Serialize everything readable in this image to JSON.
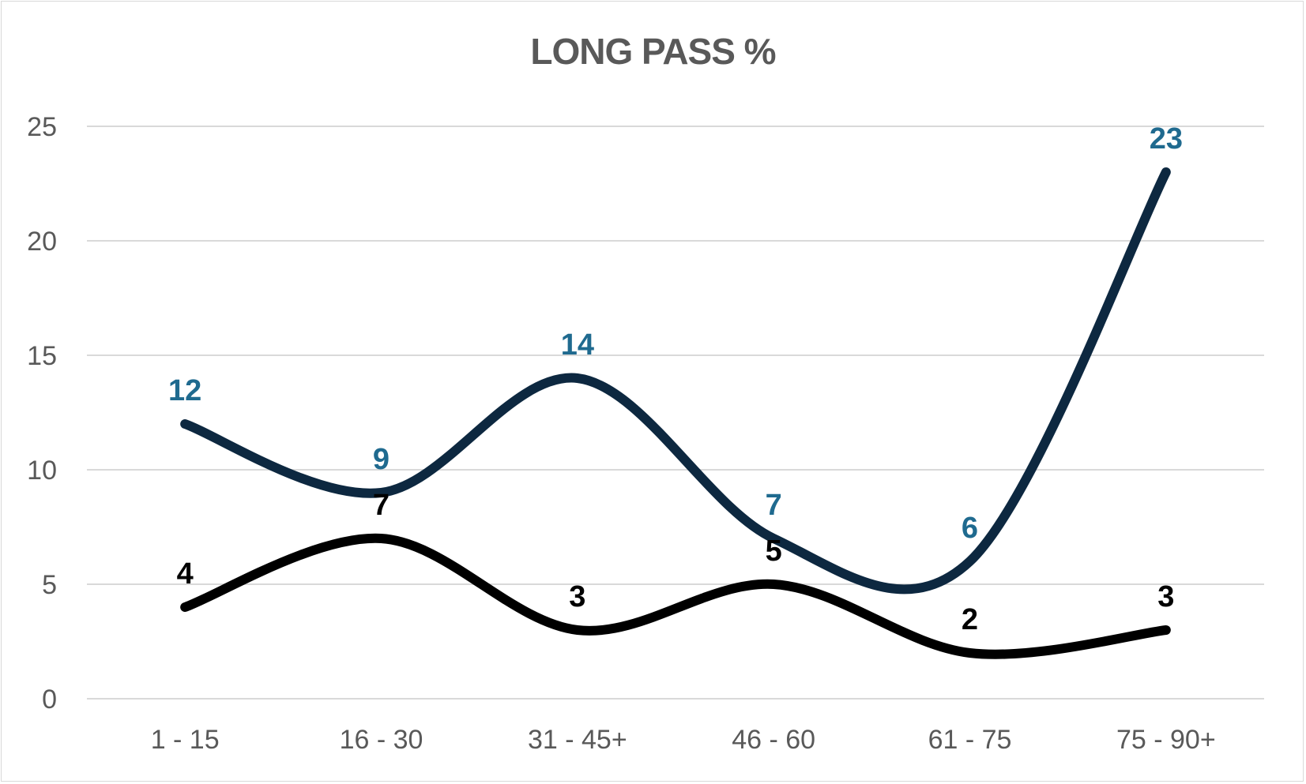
{
  "chart_data": {
    "type": "line",
    "title": "LONG PASS %",
    "categories": [
      "1 - 15",
      "16 - 30",
      "31 - 45+",
      "46 - 60",
      "61 - 75",
      "75 - 90+"
    ],
    "series": [
      {
        "values": [
          12,
          9,
          14,
          7,
          6,
          23
        ],
        "color": "#0d2840",
        "label_color": "#1f6a8f"
      },
      {
        "values": [
          4,
          7,
          3,
          5,
          2,
          3
        ],
        "color": "#000000",
        "label_color": "#000000"
      }
    ],
    "yticks": [
      "0",
      "5",
      "10",
      "15",
      "20",
      "25"
    ],
    "ylim": [
      0,
      25
    ],
    "grid": true,
    "smooth": true,
    "legend": "none"
  }
}
